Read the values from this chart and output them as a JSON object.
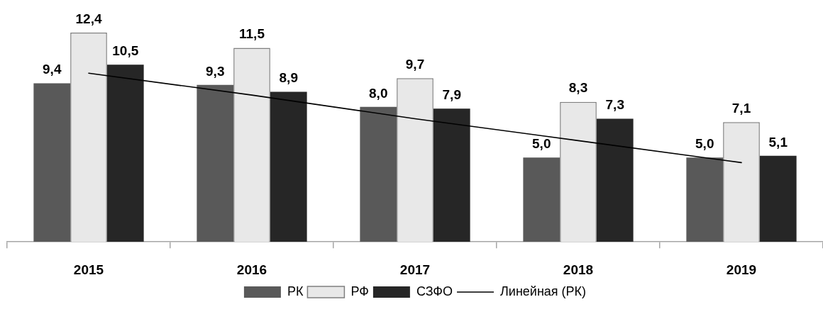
{
  "chart_data": {
    "type": "bar",
    "categories": [
      "2015",
      "2016",
      "2017",
      "2018",
      "2019"
    ],
    "series": [
      {
        "name": "РК",
        "color": "#595959",
        "values": [
          9.4,
          9.3,
          8.0,
          5.0,
          5.0
        ],
        "value_labels": [
          "9,4",
          "9,3",
          "8,0",
          "5,0",
          "5,0"
        ]
      },
      {
        "name": "РФ",
        "color": "#e8e8e8",
        "values": [
          12.4,
          11.5,
          9.7,
          8.3,
          7.1
        ],
        "value_labels": [
          "12,4",
          "11,5",
          "9,7",
          "8,3",
          "7,1"
        ]
      },
      {
        "name": "СЗФО",
        "color": "#262626",
        "values": [
          10.5,
          8.9,
          7.9,
          7.3,
          5.1
        ],
        "value_labels": [
          "10,5",
          "8,9",
          "7,9",
          "7,3",
          "5,1"
        ]
      },
      {
        "name": "Линейная (РК)",
        "type": "line",
        "color": "#000000",
        "values": [
          10.0,
          8.7,
          7.3,
          6.0,
          4.7
        ]
      }
    ],
    "legend": "bottom",
    "tick_labels": "x",
    "marker": "none",
    "line_style": "solid"
  }
}
